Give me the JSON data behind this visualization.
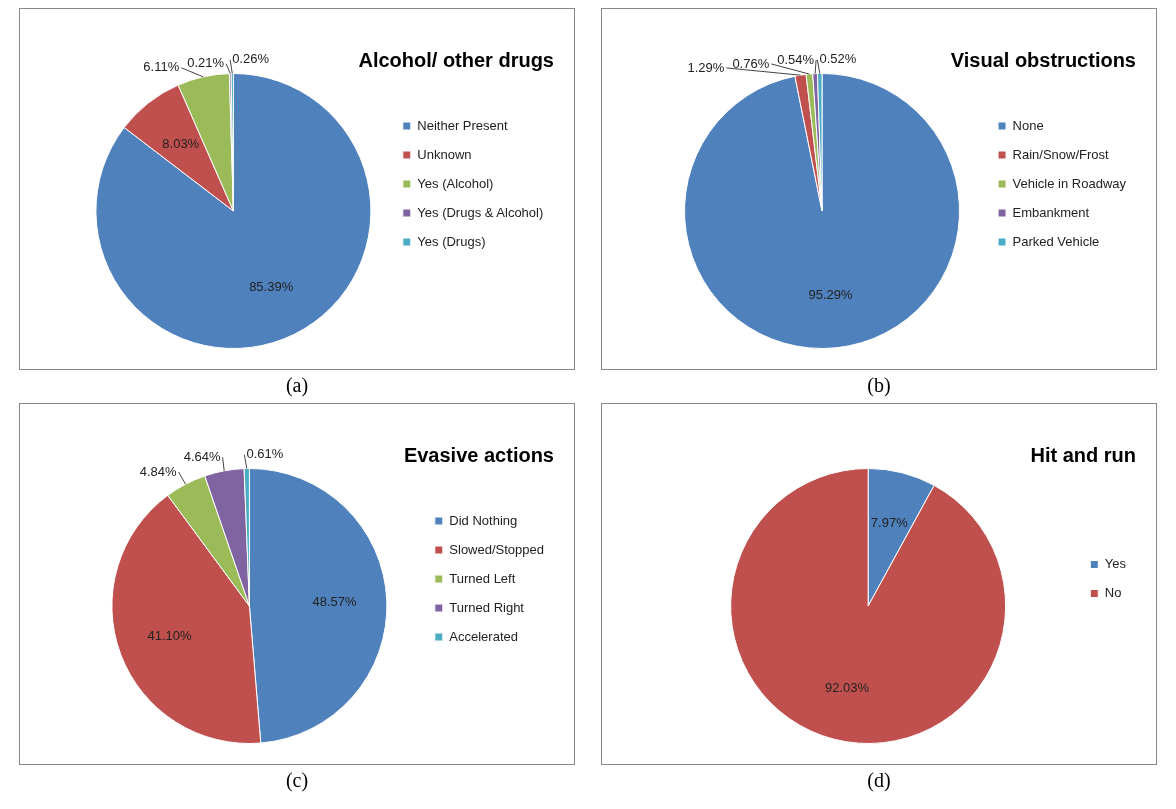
{
  "chart_data": [
    {
      "type": "pie",
      "title": "Alcohol/ other drugs",
      "categories": [
        "Neither Present",
        "Unknown",
        "Yes (Alcohol)",
        "Yes (Drugs & Alcohol)",
        "Yes (Drugs)"
      ],
      "values": [
        85.39,
        8.03,
        6.11,
        0.21,
        0.26
      ],
      "colors": [
        "#4f81bd",
        "#c0504d",
        "#9bbb59",
        "#8064a2",
        "#4bacc6"
      ],
      "value_labels": [
        "85.39%",
        "8.03%",
        "6.11%",
        "0.21%",
        "0.26%"
      ],
      "legend": "right",
      "annotations": [
        "(a)"
      ]
    },
    {
      "type": "pie",
      "title": "Visual obstructions",
      "categories": [
        "None",
        "Rain/Snow/Frost",
        "Vehicle in Roadway",
        "Embankment",
        "Parked Vehicle"
      ],
      "values": [
        95.29,
        1.29,
        0.76,
        0.54,
        0.52
      ],
      "colors": [
        "#4f81bd",
        "#c0504d",
        "#9bbb59",
        "#8064a2",
        "#4bacc6"
      ],
      "value_labels": [
        "95.29%",
        "1.29%",
        "0.76%",
        "0.54%",
        "0.52%"
      ],
      "legend": "right",
      "annotations": [
        "(b)"
      ]
    },
    {
      "type": "pie",
      "title": "Evasive actions",
      "categories": [
        "Did Nothing",
        "Slowed/Stopped",
        "Turned Left",
        "Turned Right",
        "Accelerated"
      ],
      "values": [
        48.57,
        41.1,
        4.84,
        4.64,
        0.61
      ],
      "colors": [
        "#4f81bd",
        "#c0504d",
        "#9bbb59",
        "#8064a2",
        "#4bacc6"
      ],
      "value_labels": [
        "48.57%",
        "41.10%",
        "4.84%",
        "4.64%",
        "0.61%"
      ],
      "legend": "right",
      "annotations": [
        "(c)"
      ]
    },
    {
      "type": "pie",
      "title": "Hit and run",
      "categories": [
        "Yes",
        "No"
      ],
      "values": [
        7.97,
        92.03
      ],
      "colors": [
        "#4f81bd",
        "#c0504d"
      ],
      "value_labels": [
        "7.97%",
        "92.03%"
      ],
      "legend": "right",
      "annotations": [
        "(d)"
      ]
    }
  ]
}
